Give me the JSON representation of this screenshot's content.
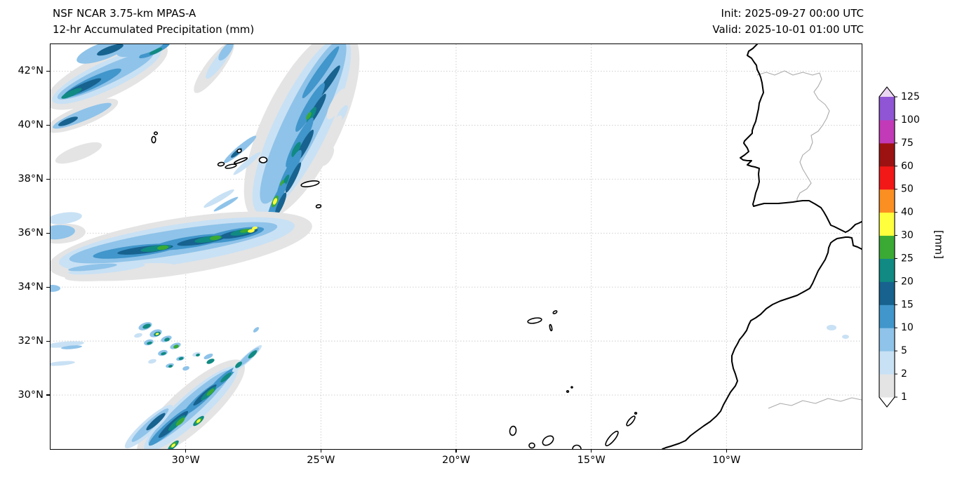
{
  "header": {
    "title_line1": "NSF NCAR 3.75-km MPAS-A",
    "title_line2": "12-hr Accumulated Precipitation (mm)",
    "init_label": "Init: 2025-09-27 00:00 UTC",
    "valid_label": "Valid: 2025-10-01 01:00 UTC"
  },
  "axes": {
    "lat_ticks": [
      {
        "deg": 42,
        "label": "42°N"
      },
      {
        "deg": 40,
        "label": "40°N"
      },
      {
        "deg": 38,
        "label": "38°N"
      },
      {
        "deg": 36,
        "label": "36°N"
      },
      {
        "deg": 34,
        "label": "34°N"
      },
      {
        "deg": 32,
        "label": "32°N"
      },
      {
        "deg": 30,
        "label": "30°N"
      }
    ],
    "lon_ticks": [
      {
        "deg": -30,
        "label": "30°W"
      },
      {
        "deg": -25,
        "label": "25°W"
      },
      {
        "deg": -20,
        "label": "20°W"
      },
      {
        "deg": -15,
        "label": "15°W"
      },
      {
        "deg": -10,
        "label": "10°W"
      }
    ]
  },
  "colorbar": {
    "unit_label": "[mm]",
    "levels": [
      "1",
      "2",
      "5",
      "10",
      "15",
      "20",
      "25",
      "30",
      "40",
      "50",
      "60",
      "75",
      "100",
      "125"
    ],
    "band_colors": [
      "#ffffff",
      "#e4e4e4",
      "#c9e1f4",
      "#8fc3e9",
      "#4196cb",
      "#17628f",
      "#108a82",
      "#3aaa35",
      "#ffff3d",
      "#fb8f22",
      "#f21818",
      "#9c1212",
      "#c23ab8",
      "#8f55d4",
      "#ead6f2"
    ]
  },
  "map": {
    "extent": {
      "lon_min": -35,
      "lon_max": -5,
      "lat_min": 28,
      "lat_max": 43
    },
    "precip_cells": [
      [
        80,
        45,
        95,
        30,
        -25,
        1
      ],
      [
        80,
        45,
        85,
        20,
        -25,
        2
      ],
      [
        78,
        45,
        75,
        13,
        -25,
        3
      ],
      [
        60,
        55,
        45,
        8,
        -25,
        4
      ],
      [
        45,
        62,
        30,
        5,
        -25,
        5
      ],
      [
        30,
        70,
        16,
        4,
        -25,
        6
      ],
      [
        45,
        102,
        55,
        14,
        -22,
        1
      ],
      [
        45,
        102,
        45,
        8,
        -22,
        3
      ],
      [
        25,
        110,
        15,
        4,
        -22,
        5
      ],
      [
        40,
        155,
        35,
        10,
        -20,
        1
      ],
      [
        120,
        20,
        30,
        6,
        -25,
        3
      ],
      [
        148,
        9,
        24,
        5,
        -25,
        4
      ],
      [
        150,
        10,
        10,
        3,
        -25,
        6
      ],
      [
        75,
        10,
        40,
        12,
        -20,
        3
      ],
      [
        85,
        8,
        20,
        5,
        -20,
        5
      ],
      [
        128,
        5,
        35,
        10,
        -15,
        3
      ],
      [
        233,
        33,
        45,
        12,
        -53,
        1
      ],
      [
        240,
        25,
        30,
        7,
        -53,
        2
      ],
      [
        250,
        10,
        16,
        6,
        -53,
        3
      ],
      [
        358,
        115,
        150,
        55,
        -64,
        1
      ],
      [
        358,
        115,
        140,
        38,
        -64,
        2
      ],
      [
        360,
        110,
        130,
        26,
        -64,
        3
      ],
      [
        385,
        40,
        45,
        6,
        -55,
        4
      ],
      [
        395,
        55,
        30,
        5,
        -55,
        5
      ],
      [
        370,
        90,
        40,
        7,
        -60,
        4
      ],
      [
        378,
        95,
        28,
        5,
        -60,
        5
      ],
      [
        372,
        100,
        12,
        4,
        -60,
        6
      ],
      [
        368,
        102,
        6,
        2.5,
        -60,
        7
      ],
      [
        355,
        140,
        40,
        7,
        -62,
        4
      ],
      [
        362,
        145,
        26,
        5,
        -62,
        5
      ],
      [
        350,
        150,
        12,
        4,
        -62,
        6
      ],
      [
        340,
        185,
        38,
        7,
        -64,
        4
      ],
      [
        346,
        190,
        24,
        4,
        -64,
        5
      ],
      [
        335,
        195,
        10,
        3,
        -64,
        6
      ],
      [
        330,
        198,
        5,
        2,
        -64,
        7
      ],
      [
        322,
        225,
        30,
        6,
        -66,
        4
      ],
      [
        328,
        228,
        18,
        4,
        -66,
        5
      ],
      [
        320,
        224,
        9,
        3.5,
        -66,
        7
      ],
      [
        320,
        224,
        5,
        2.5,
        -66,
        8
      ],
      [
        408,
        85,
        25,
        8,
        -60,
        1
      ],
      [
        415,
        100,
        15,
        5,
        -60,
        2
      ],
      [
        395,
        160,
        15,
        6,
        -60,
        1
      ],
      [
        270,
        150,
        30,
        5,
        -40,
        3
      ],
      [
        280,
        170,
        25,
        4,
        -40,
        2
      ],
      [
        265,
        155,
        10,
        3,
        -40,
        5
      ],
      [
        240,
        220,
        25,
        4,
        -30,
        2
      ],
      [
        250,
        228,
        20,
        3,
        -30,
        3
      ],
      [
        408,
        112,
        12,
        5,
        -60,
        1
      ],
      [
        185,
        288,
        190,
        40,
        -9,
        1
      ],
      [
        180,
        285,
        170,
        28,
        -9,
        2
      ],
      [
        175,
        283,
        150,
        18,
        -9,
        3
      ],
      [
        120,
        295,
        60,
        8,
        -7,
        4
      ],
      [
        200,
        282,
        55,
        8,
        -9,
        4
      ],
      [
        260,
        272,
        45,
        8,
        -11,
        4
      ],
      [
        135,
        293,
        40,
        5,
        -7,
        5
      ],
      [
        215,
        280,
        35,
        5,
        -9,
        5
      ],
      [
        268,
        270,
        28,
        5,
        -11,
        5
      ],
      [
        150,
        291,
        22,
        4,
        -8,
        6
      ],
      [
        225,
        278,
        20,
        4,
        -9,
        6
      ],
      [
        272,
        268,
        16,
        4,
        -11,
        6
      ],
      [
        160,
        290,
        8,
        3,
        -8,
        7
      ],
      [
        235,
        276,
        8,
        3,
        -9,
        7
      ],
      [
        277,
        266,
        7,
        2.5,
        -11,
        7
      ],
      [
        286,
        266,
        5,
        2.5,
        -11,
        8
      ],
      [
        291,
        262,
        4,
        2,
        -11,
        8
      ],
      [
        15,
        270,
        35,
        14,
        -5,
        1
      ],
      [
        10,
        268,
        25,
        10,
        -5,
        3
      ],
      [
        100,
        325,
        80,
        10,
        -6,
        1
      ],
      [
        80,
        320,
        55,
        6,
        -6,
        2
      ],
      [
        60,
        318,
        35,
        4,
        -6,
        3
      ],
      [
        2,
        348,
        12,
        5,
        0,
        3
      ],
      [
        20,
        248,
        25,
        8,
        -8,
        2
      ],
      [
        135,
        402,
        10,
        5,
        -20,
        3
      ],
      [
        137,
        402,
        6,
        3,
        -20,
        6
      ],
      [
        150,
        412,
        9,
        5,
        -20,
        3
      ],
      [
        152,
        413,
        5,
        3,
        -20,
        6
      ],
      [
        152,
        413,
        2.5,
        1.5,
        -20,
        8
      ],
      [
        165,
        420,
        8,
        4,
        -20,
        3
      ],
      [
        166,
        421,
        4,
        2.5,
        -20,
        6
      ],
      [
        140,
        425,
        7,
        4,
        -15,
        3
      ],
      [
        141,
        426,
        4,
        2,
        -15,
        6
      ],
      [
        125,
        415,
        6,
        3,
        -15,
        2
      ],
      [
        178,
        430,
        8,
        4,
        -20,
        3
      ],
      [
        179,
        431,
        4,
        2.5,
        -20,
        7
      ],
      [
        160,
        440,
        7,
        4,
        -15,
        3
      ],
      [
        161,
        441,
        4,
        2,
        -15,
        6
      ],
      [
        185,
        448,
        6,
        3,
        -15,
        3
      ],
      [
        186,
        448,
        3.5,
        2,
        -15,
        6
      ],
      [
        145,
        452,
        6,
        3,
        -15,
        2
      ],
      [
        170,
        458,
        6,
        3,
        -15,
        3
      ],
      [
        171,
        459,
        3,
        2,
        -15,
        6
      ],
      [
        193,
        462,
        5,
        3,
        -15,
        3
      ],
      [
        208,
        442,
        6,
        3,
        -15,
        2
      ],
      [
        210,
        443,
        3,
        2,
        -15,
        6
      ],
      [
        20,
        428,
        28,
        4,
        -5,
        2
      ],
      [
        30,
        432,
        15,
        2.5,
        -5,
        3
      ],
      [
        15,
        455,
        20,
        3,
        -5,
        2
      ],
      [
        225,
        445,
        7,
        3,
        -25,
        3
      ],
      [
        228,
        452,
        6,
        3,
        -25,
        6
      ],
      [
        200,
        520,
        100,
        30,
        -42,
        1
      ],
      [
        200,
        520,
        88,
        20,
        -42,
        2
      ],
      [
        198,
        518,
        78,
        13,
        -42,
        3
      ],
      [
        170,
        545,
        40,
        7,
        -42,
        4
      ],
      [
        215,
        505,
        35,
        6,
        -42,
        4
      ],
      [
        245,
        478,
        25,
        5,
        -42,
        4
      ],
      [
        175,
        542,
        28,
        5,
        -42,
        5
      ],
      [
        220,
        500,
        22,
        4,
        -42,
        5
      ],
      [
        180,
        540,
        16,
        4,
        -42,
        6
      ],
      [
        225,
        498,
        14,
        3.5,
        -42,
        6
      ],
      [
        250,
        475,
        10,
        3,
        -42,
        6
      ],
      [
        185,
        538,
        8,
        3,
        -42,
        7
      ],
      [
        228,
        496,
        7,
        2.5,
        -42,
        7
      ],
      [
        211,
        537,
        10,
        3.5,
        -42,
        6
      ],
      [
        211,
        537,
        6,
        2.5,
        -42,
        7
      ],
      [
        211,
        537,
        3.5,
        1.8,
        -42,
        8
      ],
      [
        175,
        572,
        10,
        3.5,
        -42,
        6
      ],
      [
        175,
        571,
        6,
        2.5,
        -42,
        7
      ],
      [
        175,
        572,
        3.5,
        1.8,
        -42,
        8
      ],
      [
        140,
        545,
        45,
        10,
        -42,
        2
      ],
      [
        142,
        543,
        35,
        6,
        -42,
        3
      ],
      [
        150,
        538,
        18,
        4,
        -42,
        5
      ],
      [
        280,
        448,
        28,
        5,
        -42,
        2
      ],
      [
        282,
        446,
        20,
        4,
        -42,
        3
      ],
      [
        288,
        442,
        8,
        3,
        -42,
        6
      ],
      [
        268,
        457,
        6,
        3,
        -42,
        6
      ],
      [
        293,
        407,
        5,
        2.5,
        -42,
        3
      ],
      [
        1113,
        404,
        7,
        4,
        0,
        2
      ],
      [
        1133,
        417,
        5,
        3,
        0,
        2
      ]
    ]
  }
}
